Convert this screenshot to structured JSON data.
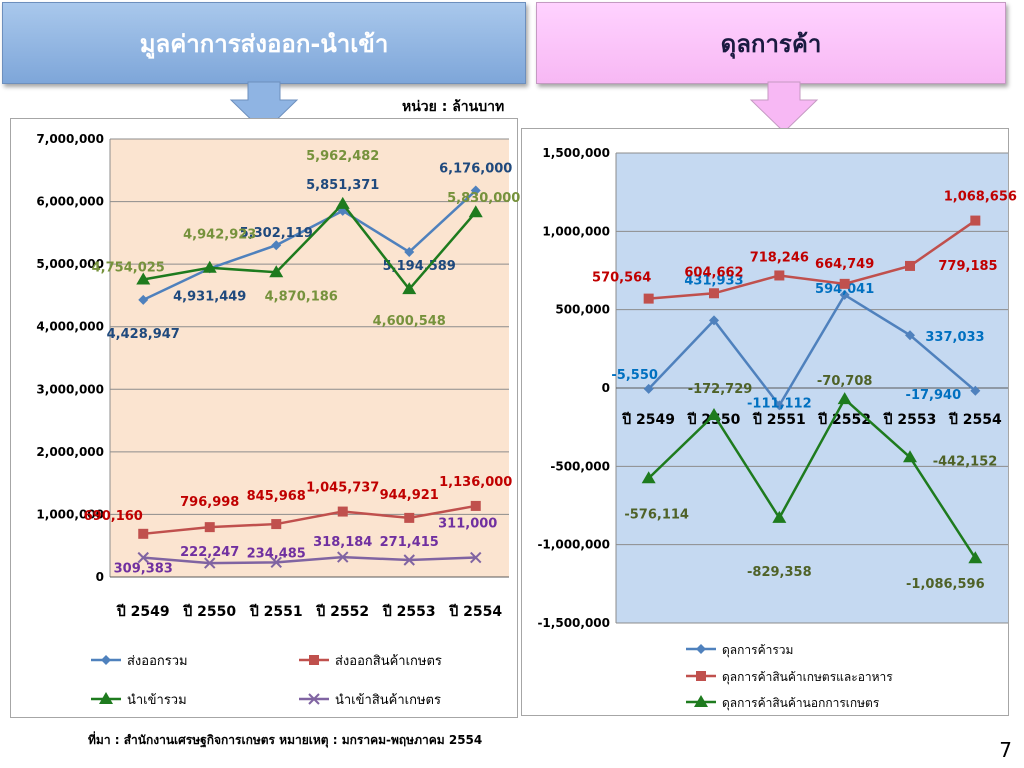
{
  "slide": {
    "left_banner": "มูลค่าการส่งออก-นำเข้า",
    "right_banner": "ดุลการค้า",
    "unit": "หน่วย : ล้านบาท",
    "source_note": "ที่มา : สำนักงานเศรษฐกิจการเกษตร หมายเหตุ : มกราคม-พฤษภาคม 2554",
    "page_number": "7"
  },
  "chart_data": [
    {
      "type": "line",
      "categories": [
        "ปี 2549",
        "ปี 2550",
        "ปี 2551",
        "ปี 2552",
        "ปี 2553",
        "ปี 2554"
      ],
      "ylim": [
        0,
        7000000
      ],
      "yticks": [
        "0",
        "1,000,000",
        "2,000,000",
        "3,000,000",
        "4,000,000",
        "5,000,000",
        "6,000,000",
        "7,000,000"
      ],
      "plot_background": "#fbe4d0",
      "legend_position": "bottom",
      "series": [
        {
          "name": "ส่งออกรวม",
          "color": "#4f81bd",
          "label_color": "#1f497d",
          "marker": "diamond",
          "values": [
            4428947,
            4931449,
            5302119,
            5851371,
            5194589,
            6176000
          ],
          "labels": [
            "4,428,947",
            "4,931,449",
            "5,302,119",
            "5,851,371",
            "5,194,589",
            "6,176,000"
          ]
        },
        {
          "name": "ส่งออกสินค้าเกษตร",
          "color": "#c0504d",
          "label_color": "#c00000",
          "marker": "square",
          "values": [
            690160,
            796998,
            845968,
            1045737,
            944921,
            1136000
          ],
          "labels": [
            "690,160",
            "796,998",
            "845,968",
            "1,045,737",
            "944,921",
            "1,136,000"
          ]
        },
        {
          "name": "นำเข้ารวม",
          "color": "#1e7b1e",
          "label_color": "#76923c",
          "marker": "triangle",
          "values": [
            4754025,
            4942923,
            4870186,
            5962482,
            4600548,
            5830000
          ],
          "labels": [
            "4,754,025",
            "4,942,923",
            "4,870,186",
            "5,962,482",
            "4,600,548",
            "5,830,000"
          ]
        },
        {
          "name": "นำเข้าสินค้าเกษตร",
          "color": "#8064a2",
          "label_color": "#7030a0",
          "marker": "x",
          "values": [
            309383,
            222247,
            234485,
            318184,
            271415,
            311000
          ],
          "labels": [
            "309,383",
            "222,247",
            "234,485",
            "318,184",
            "271,415",
            "311,000"
          ]
        }
      ]
    },
    {
      "type": "line",
      "categories": [
        "ปี 2549",
        "ปี 2550",
        "ปี 2551",
        "ปี 2552",
        "ปี 2553",
        "ปี 2554"
      ],
      "ylim": [
        -1500000,
        1500000
      ],
      "yticks": [
        "-1,500,000",
        "-1,000,000",
        "-500,000",
        "0",
        "500,000",
        "1,000,000",
        "1,500,000"
      ],
      "plot_background": "#c5d9f1",
      "legend_position": "bottom",
      "series": [
        {
          "name": "ดุลการค้ารวม",
          "color": "#4f81bd",
          "label_color": "#0070c0",
          "marker": "diamond",
          "values": [
            -5550,
            431933,
            -111112,
            594041,
            337033,
            -17940
          ],
          "labels": [
            "-5,550",
            "431,933",
            "-111,112",
            "594,041",
            "337,033",
            "-17,940"
          ]
        },
        {
          "name": "ดุลการค้าสินค้าเกษตรและอาหาร",
          "color": "#c0504d",
          "label_color": "#c00000",
          "marker": "square",
          "values": [
            570564,
            604662,
            718246,
            664749,
            779185,
            1068656
          ],
          "labels": [
            "570,564",
            "604,662",
            "718,246",
            "664,749",
            "779,185",
            "1,068,656"
          ]
        },
        {
          "name": "ดุลการค้าสินค้านอกการเกษตร",
          "color": "#1e7b1e",
          "label_color": "#4f6228",
          "marker": "triangle",
          "values": [
            -576114,
            -172729,
            -829358,
            -70708,
            -442152,
            -1086596
          ],
          "labels": [
            "-576,114",
            "-172,729",
            "-829,358",
            "-70,708",
            "-442,152",
            "-1,086,596"
          ]
        }
      ]
    }
  ]
}
